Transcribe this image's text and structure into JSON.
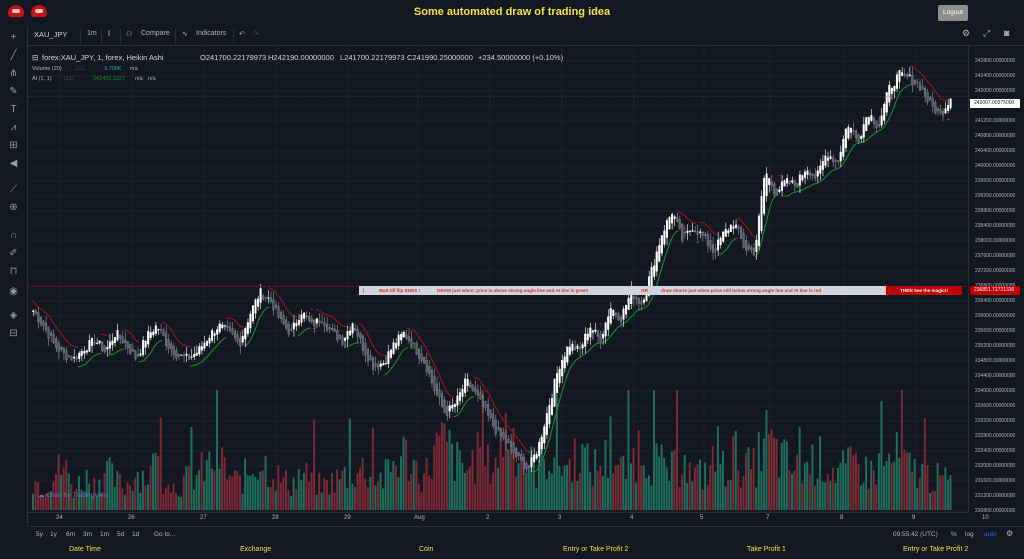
{
  "header": {
    "title": "Some automated draw of trading idea",
    "logout_label": "Logout"
  },
  "toolbar": {
    "symbol": "XAU_JPY",
    "interval": "1m",
    "compare_label": "Compare",
    "indicators_label": "Indicators"
  },
  "legend": {
    "main": "forex:XAU_JPY, 1, forex, Heikin Ashi",
    "open": "O241700.22179973",
    "high": "H242190.00000000",
    "low": "L241700.22179973",
    "close": "C241990.25000000",
    "change": "+234.50000000 (+0.10%)",
    "volume_label": "Volume (20)",
    "volume_value": "3.708K",
    "volume_na": "n/a",
    "ai_label": "AI (1, 1)",
    "ai_value": "241455.3327",
    "ai_na1": "n/a",
    "ai_na2": "n/a"
  },
  "banner": {
    "part1": "Wait till flip ENDS  !",
    "part2": "DRAW just when:  price is above strong angle line and AI line is green",
    "part3": "OR",
    "part4": "draw shorts just when price still below strong angle line and AI line is red",
    "end": "THEN See the magic!!"
  },
  "price_axis": {
    "ticks": [
      "242800.00000000",
      "242400.00000000",
      "242000.00000000",
      "241600.00000000",
      "241200.00000000",
      "240800.00000000",
      "240400.00000000",
      "240000.00000000",
      "239600.00000000",
      "239200.00000000",
      "238800.00000000",
      "238400.00000000",
      "238000.00000000",
      "237600.00000000",
      "237200.00000000",
      "236800.00000000",
      "236400.00000000",
      "236000.00000000",
      "235600.00000000",
      "235200.00000000",
      "234800.00000000",
      "234400.00000000",
      "234000.00000000",
      "233600.00000000",
      "233200.00000000",
      "232800.00000000",
      "232400.00000000",
      "232000.00000000",
      "231600.00000000",
      "231200.00000000",
      "230800.00000000"
    ],
    "last_price": "242007.00375000",
    "line_price": "236851.71721336"
  },
  "time_axis": {
    "ticks": [
      "24",
      "26",
      "27",
      "28",
      "29",
      "Aug",
      "2",
      "3",
      "4",
      "5",
      "7",
      "8",
      "9",
      "10"
    ]
  },
  "bottom_bar": {
    "ranges": [
      "5y",
      "1y",
      "6m",
      "3m",
      "1m",
      "5d",
      "1d"
    ],
    "goto": "Go to...",
    "clock": "09:55:42 (UTC)",
    "percent": "%",
    "log": "log",
    "auto": "auto"
  },
  "watermark": "Chart by TradingView",
  "footer": {
    "labels": [
      "Date Time",
      "Exchange",
      "Coin",
      "Entry or Take Profit 2",
      "Take Profit 1",
      "Entry or Take Profit 2"
    ]
  },
  "colors": {
    "background": "#131722",
    "accent": "#f5e633",
    "up": "#26a69a",
    "down": "#ef5350",
    "ai_green": "#1b8a2a",
    "ai_red": "#a3121a",
    "candle_up": "#ffffff",
    "candle_down": "#787b86"
  },
  "chart_data": {
    "type": "candlestick",
    "symbol": "forex:XAU_JPY",
    "interval": "1",
    "style": "Heikin Ashi",
    "ylim": [
      230800,
      243000
    ],
    "x_ticks": [
      "24",
      "26",
      "27",
      "28",
      "29",
      "Aug",
      "2",
      "3",
      "4",
      "5",
      "7",
      "8",
      "9",
      "10"
    ],
    "close_path": [
      236200,
      235800,
      235300,
      235000,
      234900,
      235200,
      235400,
      235100,
      235600,
      235300,
      234900,
      235500,
      235800,
      235300,
      235000,
      234900,
      235100,
      235500,
      235800,
      235600,
      235300,
      236100,
      236700,
      236500,
      235900,
      235600,
      236200,
      235800,
      236000,
      235600,
      235400,
      235900,
      235200,
      234700,
      234800,
      235300,
      235600,
      235200,
      234800,
      234000,
      233400,
      233700,
      234300,
      233900,
      233400,
      232900,
      232600,
      232200,
      231900,
      232500,
      233600,
      234700,
      235300,
      235100,
      235800,
      235400,
      236300,
      236000,
      236700,
      236400,
      237300,
      238300,
      238900,
      238100,
      238500,
      238200,
      237800,
      238300,
      238600,
      237900,
      237800,
      240000,
      239400,
      239700,
      239600,
      240100,
      239800,
      240500,
      240200,
      241300,
      240800,
      241600,
      241200,
      242200,
      242600,
      242500,
      242300,
      241800,
      241500,
      242000
    ],
    "volume_path": [
      1200,
      900,
      1400,
      1700,
      800,
      1300,
      1000,
      1600,
      1100,
      900,
      1500,
      1300,
      1800,
      1000,
      900,
      1200,
      1400,
      1700,
      2100,
      1300,
      1100,
      1500,
      2000,
      1600,
      1200,
      1000,
      1400,
      1200,
      900,
      1100,
      1300,
      1500,
      1600,
      1400,
      1200,
      1800,
      2200,
      1700,
      1300,
      2300,
      2600,
      1900,
      1500,
      2100,
      1700,
      2000,
      3400,
      2500,
      1800,
      1600,
      2200,
      1900,
      1700,
      2400,
      1600,
      1800,
      2100,
      1500,
      1900,
      2600,
      2000,
      1700,
      1500,
      1900,
      1300,
      1400,
      1800,
      1600,
      2200,
      1700,
      1600,
      2900,
      2200,
      1900,
      1500,
      1700,
      2000,
      1800,
      1500,
      1600,
      1900,
      1400,
      1700,
      1800,
      2100,
      1600,
      1500,
      1300,
      1200,
      1100
    ],
    "ai_line": "green below price when rising, red above price when falling",
    "horizontal_line_price": 236851.71721336,
    "last_price": 242007.00375
  }
}
